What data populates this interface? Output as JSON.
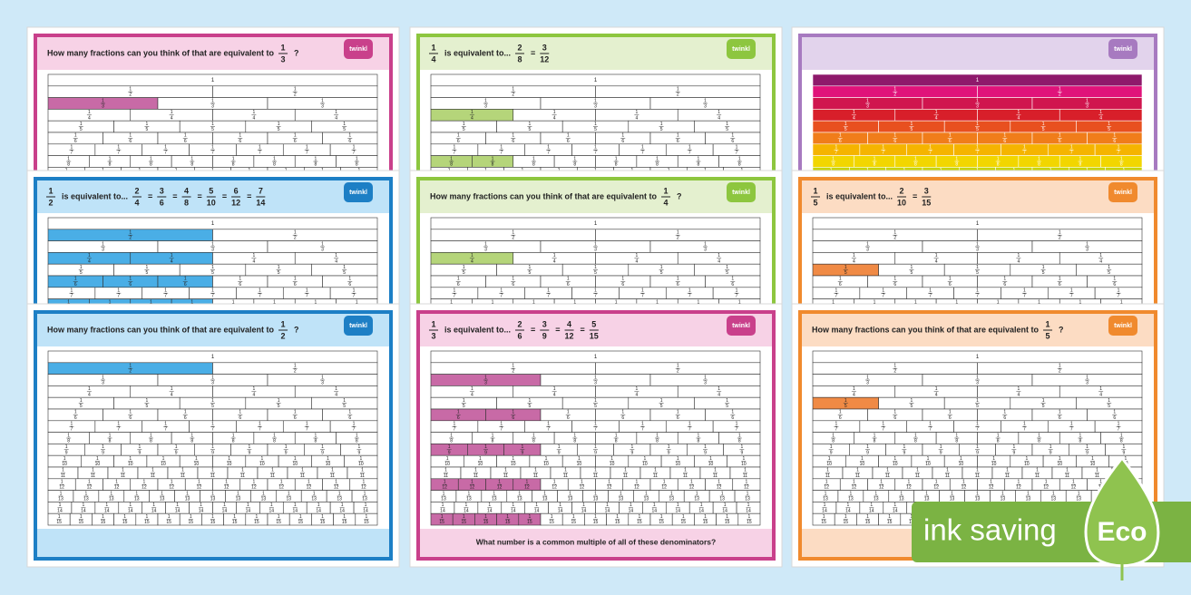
{
  "logo": "twinkl",
  "wall": {
    "whole": 1,
    "numerator": 1,
    "denominators": [
      2,
      3,
      4,
      5,
      6,
      7,
      8,
      9,
      10,
      11,
      12,
      13,
      14,
      15
    ]
  },
  "cards": [
    {
      "color": "#c9408b",
      "tint": "#f7d2e6",
      "shade": "#c86aa6",
      "header": [
        {
          "text": "How many fractions can you think of that are equivalent to"
        },
        {
          "num": 1,
          "den": 3
        },
        {
          "text": "?"
        }
      ]
    },
    {
      "color": "#8dc63f",
      "tint": "#e4f0cf",
      "shade": "#b5d57a",
      "header": [
        {
          "num": 1,
          "den": 4
        },
        {
          "text": "is equivalent to..."
        },
        {
          "num": 2,
          "den": 8
        },
        {
          "text": "="
        },
        {
          "num": 3,
          "den": 12
        }
      ]
    },
    {
      "color": "#a77ac0",
      "tint": "#e2d3ec",
      "shade": "#a77ac0",
      "header": [],
      "rainbow": [
        "#8e1a6b",
        "#e0137a",
        "#d0154e",
        "#d81f2a",
        "#e8501f",
        "#f07d1a",
        "#f5b400",
        "#f2d600",
        "#c6d400",
        "#8cc63f",
        "#3fb34f",
        "#1fa38a",
        "#1f8fc4",
        "#2b66b3",
        "#4b4fa3"
      ]
    },
    {
      "color": "#1d7fc5",
      "tint": "#bfe3f8",
      "shade": "#4aaee6",
      "header": [
        {
          "num": 1,
          "den": 2
        },
        {
          "text": "is equivalent to..."
        },
        {
          "num": 2,
          "den": 4
        },
        {
          "text": "="
        },
        {
          "num": 3,
          "den": 6
        },
        {
          "text": "="
        },
        {
          "num": 4,
          "den": 8
        },
        {
          "text": "="
        },
        {
          "num": 5,
          "den": 10
        },
        {
          "text": "="
        },
        {
          "num": 6,
          "den": 12
        },
        {
          "text": "="
        },
        {
          "num": 7,
          "den": 14
        }
      ]
    },
    {
      "color": "#8dc63f",
      "tint": "#e4f0cf",
      "shade": "#b5d57a",
      "header": [
        {
          "text": "How many fractions can you think of that are equivalent to"
        },
        {
          "num": 1,
          "den": 4
        },
        {
          "text": "?"
        }
      ]
    },
    {
      "color": "#f08a2e",
      "tint": "#fcdcc3",
      "shade": "#f08a45",
      "header": [
        {
          "num": 1,
          "den": 5
        },
        {
          "text": "is equivalent to..."
        },
        {
          "num": 2,
          "den": 10
        },
        {
          "text": "="
        },
        {
          "num": 3,
          "den": 15
        }
      ]
    },
    {
      "color": "#1d7fc5",
      "tint": "#bfe3f8",
      "shade": "#4aaee6",
      "header": [
        {
          "text": "How many fractions can you think of that are equivalent to"
        },
        {
          "num": 1,
          "den": 2
        },
        {
          "text": "?"
        }
      ]
    },
    {
      "color": "#c9408b",
      "tint": "#f7d2e6",
      "shade": "#c86aa6",
      "header": [
        {
          "num": 1,
          "den": 3
        },
        {
          "text": "is equivalent to..."
        },
        {
          "num": 2,
          "den": 6
        },
        {
          "text": "="
        },
        {
          "num": 3,
          "den": 9
        },
        {
          "text": "="
        },
        {
          "num": 4,
          "den": 12
        },
        {
          "text": "="
        },
        {
          "num": 5,
          "den": 15
        }
      ],
      "footer": "What number is a common multiple of all of these denominators?"
    },
    {
      "color": "#f08a2e",
      "tint": "#fcdcc3",
      "shade": "#f08a45",
      "header": [
        {
          "text": "How many fractions can you think of that are equivalent to"
        },
        {
          "num": 1,
          "den": 5
        },
        {
          "text": "?"
        }
      ]
    }
  ],
  "badge": {
    "text": "ink saving",
    "eco": "Eco"
  }
}
